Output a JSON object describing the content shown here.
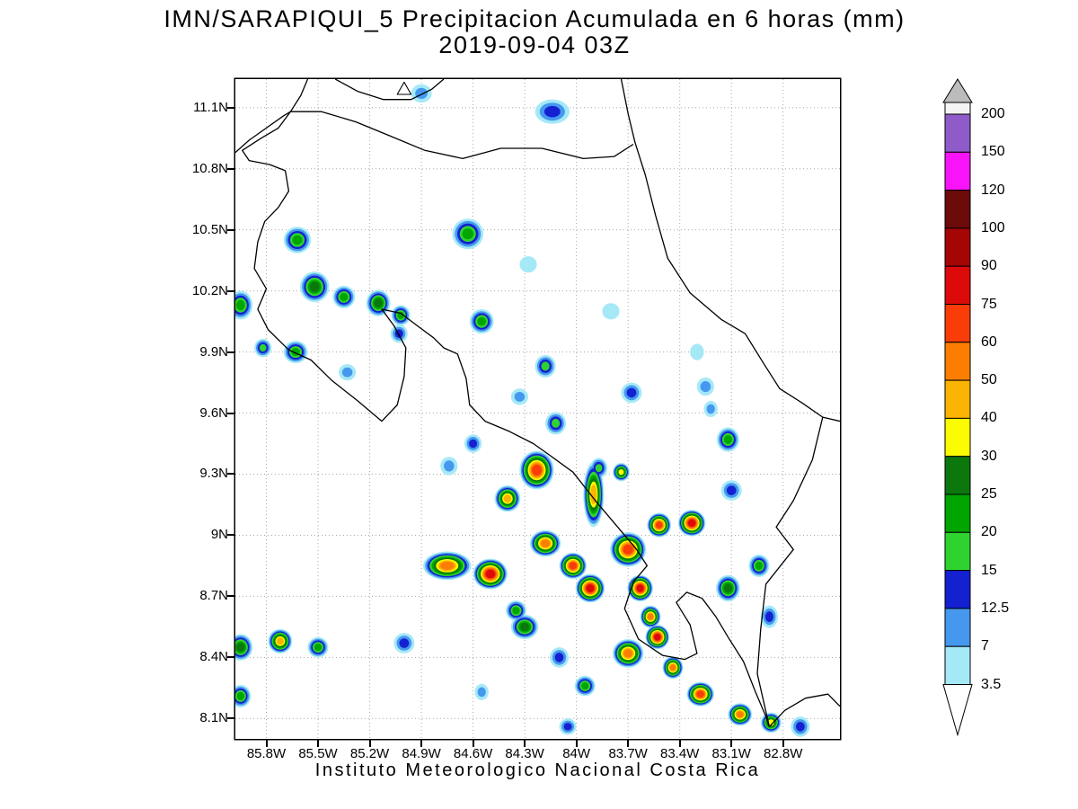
{
  "title": {
    "line1": "IMN/SARAPIQUI_5 Precipitacion Acumulada en 6 horas (mm)",
    "line2": "2019-09-04 03Z"
  },
  "footer": "Instituto Meteorologico Nacional Costa Rica",
  "chart_data": {
    "type": "heatmap",
    "title": "IMN/SARAPIQUI_5 Precipitacion Acumulada en 6 horas (mm)",
    "valid_time": "2019-09-04 03Z",
    "units": "mm",
    "region": "Costa Rica",
    "grid": true,
    "x_axis": {
      "ticks": [
        "85.8W",
        "85.5W",
        "85.2W",
        "84.9W",
        "84.6W",
        "84.3W",
        "84W",
        "83.7W",
        "83.4W",
        "83.1W",
        "82.8W"
      ],
      "values": [
        85.8,
        85.5,
        85.2,
        84.9,
        84.6,
        84.3,
        84,
        83.7,
        83.4,
        83.1,
        82.8
      ]
    },
    "y_axis": {
      "ticks": [
        "8.1N",
        "8.4N",
        "8.7N",
        "9N",
        "9.3N",
        "9.6N",
        "9.9N",
        "10.2N",
        "10.5N",
        "10.8N",
        "11.1N"
      ],
      "values": [
        8.1,
        8.4,
        8.7,
        9,
        9.3,
        9.6,
        9.9,
        10.2,
        10.5,
        10.8,
        11.1
      ]
    },
    "map_bounds": {
      "lon_west": 85.98,
      "lon_east": 82.47,
      "lat_south": 8.0,
      "lat_north": 11.24
    },
    "colorbar": {
      "levels": [
        3.5,
        7,
        12.5,
        15,
        20,
        25,
        30,
        40,
        50,
        60,
        75,
        90,
        100,
        120,
        150,
        200
      ],
      "labels": [
        "3.5",
        "7",
        "12.5",
        "15",
        "20",
        "25",
        "30",
        "40",
        "50",
        "60",
        "75",
        "90",
        "100",
        "120",
        "150",
        "200"
      ],
      "interval_colors": [
        "#a5e9f7",
        "#4698ef",
        "#1421d0",
        "#2fd32f",
        "#00a500",
        "#0c770c",
        "#fbfb02",
        "#fbb402",
        "#fb7e02",
        "#f93c08",
        "#dc0a0a",
        "#a50505",
        "#6d0a0a",
        "#f913f9",
        "#8f5bc8"
      ],
      "over_color": "#f4f4f4",
      "over_arrow_color": "#bcbcbc",
      "under_arrow_color": "#ffffff"
    },
    "cells_schema": [
      "lon_w",
      "lat_n",
      "max_mm",
      "rx_deg",
      "ry_deg"
    ],
    "cells": [
      [
        84.63,
        10.48,
        20,
        0.09,
        0.075
      ],
      [
        84.14,
        11.08,
        12.5,
        0.1,
        0.06
      ],
      [
        84.9,
        11.17,
        7,
        0.06,
        0.045
      ],
      [
        85.62,
        10.45,
        20,
        0.08,
        0.065
      ],
      [
        85.95,
        10.13,
        20,
        0.07,
        0.07
      ],
      [
        85.52,
        10.22,
        25,
        0.085,
        0.075
      ],
      [
        85.35,
        10.17,
        20,
        0.065,
        0.055
      ],
      [
        85.15,
        10.14,
        25,
        0.07,
        0.065
      ],
      [
        85.02,
        10.08,
        20,
        0.055,
        0.05
      ],
      [
        85.03,
        9.99,
        12.5,
        0.05,
        0.045
      ],
      [
        85.63,
        9.9,
        20,
        0.07,
        0.055
      ],
      [
        85.82,
        9.92,
        15,
        0.05,
        0.045
      ],
      [
        85.33,
        9.8,
        7,
        0.05,
        0.04
      ],
      [
        84.55,
        10.05,
        20,
        0.07,
        0.06
      ],
      [
        84.28,
        10.33,
        3.5,
        0.05,
        0.04
      ],
      [
        84.18,
        9.83,
        15,
        0.06,
        0.055
      ],
      [
        84.33,
        9.68,
        7,
        0.05,
        0.04
      ],
      [
        83.8,
        10.1,
        3.5,
        0.05,
        0.04
      ],
      [
        83.68,
        9.7,
        12.5,
        0.06,
        0.05
      ],
      [
        83.25,
        9.73,
        7,
        0.05,
        0.045
      ],
      [
        83.22,
        9.62,
        7,
        0.04,
        0.04
      ],
      [
        83.3,
        9.9,
        3.5,
        0.04,
        0.04
      ],
      [
        84.12,
        9.55,
        15,
        0.06,
        0.055
      ],
      [
        83.12,
        9.47,
        20,
        0.065,
        0.06
      ],
      [
        84.23,
        9.32,
        60,
        0.1,
        0.095
      ],
      [
        84.4,
        9.18,
        40,
        0.075,
        0.065
      ],
      [
        84.74,
        9.34,
        7,
        0.05,
        0.045
      ],
      [
        84.6,
        9.45,
        12.5,
        0.05,
        0.045
      ],
      [
        83.9,
        9.2,
        40,
        0.06,
        0.16
      ],
      [
        83.87,
        9.33,
        15,
        0.05,
        0.05
      ],
      [
        83.74,
        9.31,
        30,
        0.05,
        0.045
      ],
      [
        83.1,
        9.22,
        12.5,
        0.06,
        0.05
      ],
      [
        84.75,
        8.85,
        50,
        0.14,
        0.07
      ],
      [
        84.5,
        8.81,
        75,
        0.1,
        0.075
      ],
      [
        84.18,
        8.96,
        50,
        0.09,
        0.065
      ],
      [
        84.02,
        8.85,
        60,
        0.08,
        0.065
      ],
      [
        83.92,
        8.74,
        75,
        0.085,
        0.07
      ],
      [
        83.7,
        8.93,
        60,
        0.105,
        0.085
      ],
      [
        83.52,
        9.05,
        60,
        0.07,
        0.06
      ],
      [
        83.33,
        9.06,
        75,
        0.08,
        0.065
      ],
      [
        83.63,
        8.74,
        75,
        0.075,
        0.065
      ],
      [
        83.57,
        8.6,
        50,
        0.06,
        0.055
      ],
      [
        83.12,
        8.74,
        25,
        0.07,
        0.065
      ],
      [
        82.94,
        8.85,
        20,
        0.06,
        0.055
      ],
      [
        84.35,
        8.63,
        20,
        0.06,
        0.05
      ],
      [
        82.88,
        8.6,
        12.5,
        0.05,
        0.055
      ],
      [
        85.95,
        8.45,
        25,
        0.07,
        0.065
      ],
      [
        85.72,
        8.48,
        40,
        0.07,
        0.06
      ],
      [
        85.5,
        8.45,
        20,
        0.06,
        0.05
      ],
      [
        85.0,
        8.47,
        12.5,
        0.06,
        0.05
      ],
      [
        84.3,
        8.55,
        25,
        0.08,
        0.06
      ],
      [
        84.1,
        8.4,
        12.5,
        0.055,
        0.05
      ],
      [
        83.7,
        8.42,
        50,
        0.09,
        0.07
      ],
      [
        83.53,
        8.5,
        75,
        0.07,
        0.06
      ],
      [
        83.44,
        8.35,
        50,
        0.06,
        0.055
      ],
      [
        83.28,
        8.22,
        60,
        0.08,
        0.06
      ],
      [
        83.05,
        8.12,
        50,
        0.07,
        0.055
      ],
      [
        82.87,
        8.08,
        30,
        0.06,
        0.05
      ],
      [
        82.7,
        8.06,
        12.5,
        0.055,
        0.05
      ],
      [
        85.95,
        8.21,
        20,
        0.06,
        0.055
      ],
      [
        84.55,
        8.23,
        7,
        0.04,
        0.04
      ],
      [
        83.95,
        8.26,
        20,
        0.06,
        0.05
      ],
      [
        84.05,
        8.06,
        12.5,
        0.05,
        0.04
      ]
    ],
    "coastlines": [
      [
        [
          85.98,
          10.88
        ],
        [
          85.9,
          10.94
        ],
        [
          85.8,
          11.0
        ],
        [
          85.7,
          11.06
        ],
        [
          85.66,
          11.08
        ],
        [
          85.6,
          11.16
        ],
        [
          85.56,
          11.24
        ]
      ],
      [
        [
          85.4,
          11.24
        ],
        [
          85.27,
          11.18
        ],
        [
          85.12,
          11.14
        ],
        [
          84.96,
          11.14
        ],
        [
          84.84,
          11.19
        ],
        [
          84.77,
          11.24
        ]
      ],
      [
        [
          85.66,
          11.08
        ],
        [
          85.48,
          11.08
        ],
        [
          85.28,
          11.03
        ],
        [
          85.08,
          10.96
        ],
        [
          84.88,
          10.89
        ],
        [
          84.66,
          10.85
        ],
        [
          84.44,
          10.9
        ],
        [
          84.2,
          10.9
        ],
        [
          83.96,
          10.85
        ],
        [
          83.78,
          10.86
        ],
        [
          83.67,
          10.92
        ]
      ],
      [
        [
          83.74,
          11.24
        ],
        [
          83.7,
          11.07
        ],
        [
          83.66,
          10.93
        ],
        [
          83.6,
          10.77
        ],
        [
          83.54,
          10.57
        ],
        [
          83.47,
          10.36
        ],
        [
          83.34,
          10.19
        ],
        [
          83.16,
          10.06
        ],
        [
          83.02,
          9.99
        ],
        [
          82.91,
          9.84
        ],
        [
          82.82,
          9.72
        ],
        [
          82.69,
          9.65
        ],
        [
          82.57,
          9.58
        ],
        [
          82.47,
          9.56
        ]
      ],
      [
        [
          82.57,
          9.58
        ],
        [
          82.63,
          9.37
        ],
        [
          82.74,
          9.17
        ],
        [
          82.84,
          9.04
        ],
        [
          82.74,
          8.93
        ],
        [
          82.9,
          8.76
        ],
        [
          82.93,
          8.54
        ],
        [
          82.95,
          8.32
        ],
        [
          82.88,
          8.06
        ]
      ],
      [
        [
          82.88,
          8.06
        ],
        [
          82.79,
          8.14
        ],
        [
          82.67,
          8.2
        ],
        [
          82.54,
          8.22
        ],
        [
          82.47,
          8.16
        ]
      ],
      [
        [
          85.66,
          11.08
        ],
        [
          85.73,
          11.0
        ],
        [
          85.83,
          10.95
        ],
        [
          85.94,
          10.89
        ],
        [
          85.9,
          10.84
        ],
        [
          85.78,
          10.82
        ],
        [
          85.69,
          10.79
        ],
        [
          85.67,
          10.69
        ],
        [
          85.73,
          10.61
        ],
        [
          85.81,
          10.54
        ],
        [
          85.85,
          10.44
        ],
        [
          85.87,
          10.31
        ],
        [
          85.8,
          10.21
        ],
        [
          85.85,
          10.11
        ],
        [
          85.79,
          10.01
        ],
        [
          85.67,
          9.91
        ],
        [
          85.54,
          9.86
        ],
        [
          85.42,
          9.76
        ],
        [
          85.27,
          9.66
        ],
        [
          85.13,
          9.56
        ],
        [
          85.04,
          9.64
        ],
        [
          85.0,
          9.78
        ],
        [
          84.99,
          9.92
        ],
        [
          85.06,
          10.03
        ],
        [
          85.13,
          10.11
        ],
        [
          85.02,
          10.09
        ],
        [
          84.91,
          10.02
        ],
        [
          84.83,
          9.97
        ],
        [
          84.77,
          9.92
        ],
        [
          84.69,
          9.89
        ],
        [
          84.64,
          9.77
        ],
        [
          84.62,
          9.64
        ],
        [
          84.53,
          9.56
        ],
        [
          84.39,
          9.51
        ],
        [
          84.25,
          9.45
        ],
        [
          84.15,
          9.39
        ],
        [
          84.02,
          9.31
        ],
        [
          83.89,
          9.17
        ],
        [
          83.75,
          9.03
        ],
        [
          83.65,
          8.93
        ],
        [
          83.59,
          8.85
        ],
        [
          83.67,
          8.77
        ],
        [
          83.72,
          8.64
        ],
        [
          83.64,
          8.49
        ],
        [
          83.5,
          8.41
        ],
        [
          83.37,
          8.39
        ],
        [
          83.3,
          8.42
        ],
        [
          83.34,
          8.56
        ],
        [
          83.42,
          8.67
        ],
        [
          83.36,
          8.72
        ],
        [
          83.27,
          8.69
        ],
        [
          83.19,
          8.6
        ],
        [
          83.12,
          8.5
        ],
        [
          83.03,
          8.38
        ],
        [
          82.96,
          8.23
        ],
        [
          82.9,
          8.11
        ],
        [
          82.88,
          8.06
        ]
      ]
    ],
    "island_marker": [
      [
        85.04,
        11.165
      ],
      [
        85.0,
        11.225
      ],
      [
        84.96,
        11.165
      ]
    ]
  }
}
